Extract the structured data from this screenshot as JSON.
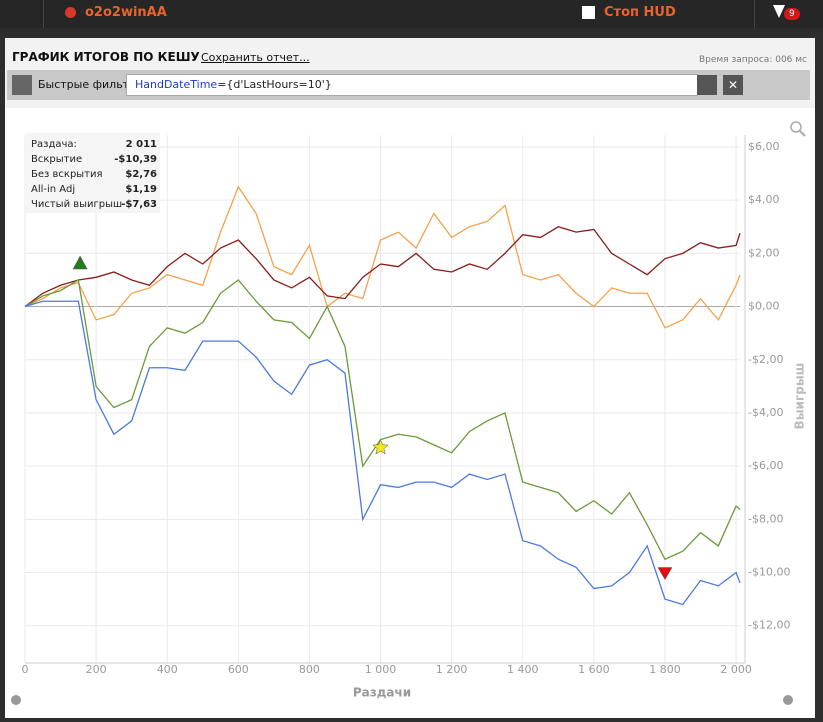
{
  "topbar": {
    "player": "o2o2winAA",
    "hud": "Стоп HUD",
    "badge": "9"
  },
  "header": {
    "title": "ГРАФИК ИТОГОВ ПО КЕШУ",
    "save": "Сохранить отчет...",
    "timing": "Время запроса: 006 мс"
  },
  "filter": {
    "label": "Быстрые фильт",
    "field": "HandDateTime",
    "expr": "={d'LastHours=10'}"
  },
  "stats": [
    {
      "label": "Раздача:",
      "value": "2 011"
    },
    {
      "label": "Вскрытие",
      "value": "-$10,39"
    },
    {
      "label": "Без вскрытия",
      "value": "$2,76"
    },
    {
      "label": "All-in Adj",
      "value": "$1,19"
    },
    {
      "label": "Чистый выигрыш",
      "value": "-$7,63"
    }
  ],
  "chart_data": {
    "type": "line",
    "xlabel": "Раздачи",
    "ylabel": "Выигрыш",
    "x": [
      0,
      50,
      100,
      150,
      200,
      250,
      300,
      350,
      400,
      450,
      500,
      550,
      600,
      650,
      700,
      750,
      800,
      850,
      900,
      950,
      1000,
      1050,
      1100,
      1150,
      1200,
      1250,
      1300,
      1350,
      1400,
      1450,
      1500,
      1550,
      1600,
      1650,
      1700,
      1750,
      1800,
      1850,
      1900,
      1950,
      2000,
      2011
    ],
    "series": [
      {
        "color": "#f4a14a",
        "values": [
          0,
          0.3,
          0.7,
          0.9,
          -0.5,
          -0.3,
          0.5,
          0.7,
          1.2,
          1.0,
          0.8,
          2.8,
          4.5,
          3.5,
          1.5,
          1.2,
          2.3,
          0,
          0.5,
          0.3,
          2.5,
          2.8,
          2.2,
          3.5,
          2.6,
          3.0,
          3.2,
          3.8,
          1.2,
          1.0,
          1.2,
          0.5,
          0,
          0.7,
          0.5,
          0.5,
          -0.8,
          -0.5,
          0.3,
          -0.5,
          0.8,
          1.19
        ]
      },
      {
        "color": "#8b1a1a",
        "values": [
          0,
          0.5,
          0.8,
          1.0,
          1.1,
          1.3,
          1.0,
          0.8,
          1.5,
          2.0,
          1.6,
          2.2,
          2.5,
          1.8,
          1.0,
          0.7,
          1.1,
          0.4,
          0.3,
          1.1,
          1.6,
          1.5,
          2.0,
          1.4,
          1.3,
          1.6,
          1.4,
          2.0,
          2.7,
          2.6,
          3.0,
          2.8,
          2.9,
          2.0,
          1.6,
          1.2,
          1.8,
          2.0,
          2.4,
          2.2,
          2.3,
          2.76
        ]
      },
      {
        "color": "#6a9a3a",
        "values": [
          0,
          0.4,
          0.6,
          1.0,
          -3,
          -3.8,
          -3.5,
          -1.5,
          -0.8,
          -1.0,
          -0.6,
          0.5,
          1.0,
          0.2,
          -0.5,
          -0.6,
          -1.2,
          0,
          -1.5,
          -6.0,
          -5.0,
          -4.8,
          -4.9,
          -5.2,
          -5.5,
          -4.7,
          -4.3,
          -4.0,
          -6.6,
          -6.8,
          -7.0,
          -7.7,
          -7.3,
          -7.8,
          -7.0,
          -8.2,
          -9.5,
          -9.2,
          -8.5,
          -9.0,
          -7.5,
          -7.63
        ]
      },
      {
        "color": "#4a7ae0",
        "values": [
          0,
          0.2,
          0.2,
          0.2,
          -3.5,
          -4.8,
          -4.3,
          -2.3,
          -2.3,
          -2.4,
          -1.3,
          -1.3,
          -1.3,
          -1.9,
          -2.8,
          -3.3,
          -2.2,
          -2.0,
          -2.5,
          -8.0,
          -6.7,
          -6.8,
          -6.6,
          -6.6,
          -6.8,
          -6.3,
          -6.5,
          -6.3,
          -8.8,
          -9.0,
          -9.5,
          -9.8,
          -10.6,
          -10.5,
          -10.0,
          -9.0,
          -11.0,
          -11.2,
          -10.3,
          -10.5,
          -10.0,
          -10.39
        ]
      }
    ],
    "markers": [
      {
        "x": 155,
        "y": 1.6,
        "shape": "triangle-up",
        "color": "#1e7d1e"
      },
      {
        "x": 1000,
        "y": -5.3,
        "shape": "star",
        "color": "#f5e617"
      },
      {
        "x": 1800,
        "y": -10.0,
        "shape": "triangle-down",
        "color": "#e01010"
      }
    ],
    "xlim": [
      0,
      2011
    ],
    "ylim": [
      -13.1,
      6.45
    ],
    "xticks": [
      0,
      200,
      400,
      600,
      800,
      {
        "value": 1000,
        "label": "1 000"
      },
      {
        "value": 1200,
        "label": "1 200"
      },
      {
        "value": 1400,
        "label": "1 400"
      },
      {
        "value": 1600,
        "label": "1 600"
      },
      {
        "value": 1800,
        "label": "1 800"
      },
      {
        "value": 2000,
        "label": "2 000"
      }
    ],
    "yticks": [
      {
        "value": 6,
        "label": "$6,00"
      },
      {
        "value": 4,
        "label": "$4,00"
      },
      {
        "value": 2,
        "label": "$2,00"
      },
      {
        "value": 0,
        "label": "$0,00"
      },
      {
        "value": -2,
        "label": "-$2,00"
      },
      {
        "value": -4,
        "label": "-$4,00"
      },
      {
        "value": -6,
        "label": "-$6,00"
      },
      {
        "value": -8,
        "label": "-$8,00"
      },
      {
        "value": -10,
        "label": "-$10,00"
      },
      {
        "value": -12,
        "label": "-$12,00"
      }
    ],
    "grid": true
  }
}
